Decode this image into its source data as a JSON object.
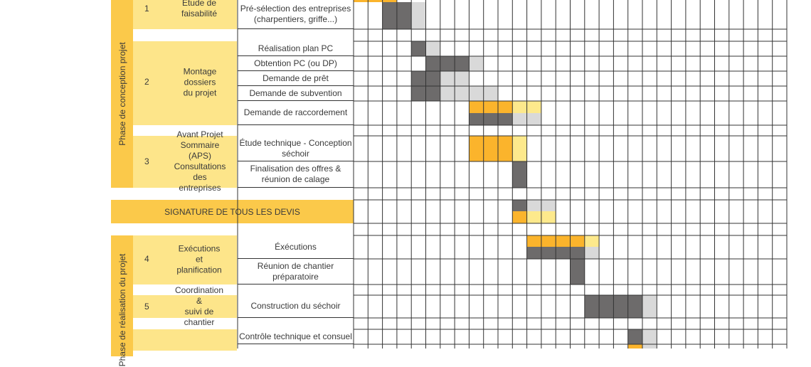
{
  "phases": [
    {
      "label": "Phase de conception projet"
    },
    {
      "label": "Phase de réalisation du projet"
    }
  ],
  "steps": [
    {
      "num": "1",
      "label": "Étude de faisabilité"
    },
    {
      "num": "2",
      "label": "Montage dossiers\ndu projet"
    },
    {
      "num": "3",
      "label": "Avant Projet\nSommaire (APS)\nConsultations des\nentreprises"
    },
    {
      "num": "4",
      "label": "Exécutions et\nplanification"
    },
    {
      "num": "5",
      "label": "Coordination &\nsuivi de chantier"
    }
  ],
  "signature": "SIGNATURE DE TOUS LES DEVIS",
  "tasks": [
    {
      "label": "Pré-sélection des entreprises\n(charpentiers, griffe...)"
    },
    {
      "label": "Réalisation plan PC"
    },
    {
      "label": "Obtention PC (ou DP)"
    },
    {
      "label": "Demande de prêt"
    },
    {
      "label": "Demande de subvention"
    },
    {
      "label": "Demande de raccordement"
    },
    {
      "label": "Étude technique - Conception\nséchoir"
    },
    {
      "label": "Finalisation des offres &\nréunion de calage"
    },
    {
      "label": "Éxécutions"
    },
    {
      "label": "Réunion de chantier\npréparatoire"
    },
    {
      "label": "Construction du séchoir"
    },
    {
      "label": "Contrôle technique et consuel"
    }
  ],
  "colors": {
    "phase": "#fbc94a",
    "step": "#fde58a",
    "dark_gray": "#6d6b6b",
    "light_gray": "#d9d9d9",
    "orange": "#fbb42c",
    "light_yellow": "#fde98c"
  }
}
